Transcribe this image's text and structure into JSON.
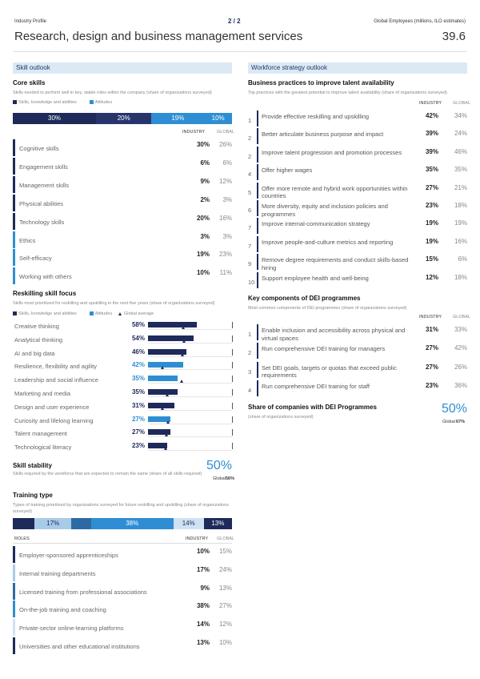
{
  "header": {
    "profile": "Industry Profile",
    "page": "2 / 2",
    "metric_label": "Global Employees (millions, ILO estimates)",
    "title": "Research, design and business management services",
    "metric_value": "39.6"
  },
  "skill_outlook": {
    "section": "Skill outlook",
    "core_skills": {
      "title": "Core skills",
      "subtitle": "Skills needed to perform well in key, stable roles within the company (share of organizations surveyed)",
      "legend": [
        "Skills, knowledge and abilities",
        "Attitudes"
      ],
      "legend_colors": [
        "#1e2a5a",
        "#2f8ed3"
      ],
      "bar": {
        "values": [
          30,
          20,
          19,
          10
        ],
        "value_labels": [
          "30%",
          "20%",
          "19%",
          "10%"
        ],
        "colors": [
          "#1e2a5a",
          "#27356b",
          "#2f8ed3",
          "#2f8ed3"
        ]
      },
      "columns": [
        "INDUSTRY",
        "GLOBAL"
      ],
      "rows": [
        [
          "Cognitive skills",
          "30%",
          "26%"
        ],
        [
          "Engagement skills",
          "6%",
          "6%"
        ],
        [
          "Management skills",
          "9%",
          "12%"
        ],
        [
          "Physical abilities",
          "2%",
          "3%"
        ],
        [
          "Technology skills",
          "20%",
          "16%"
        ],
        [
          "Ethics",
          "3%",
          "3%"
        ],
        [
          "Self-efficacy",
          "19%",
          "23%"
        ],
        [
          "Working with others",
          "10%",
          "11%"
        ]
      ],
      "row_colors": [
        "#1e2a5a",
        "#1e2a5a",
        "#1e2a5a",
        "#1e2a5a",
        "#1e2a5a",
        "#2f8ed3",
        "#2f8ed3",
        "#2f8ed3"
      ]
    },
    "reskilling": {
      "title": "Reskilling skill focus",
      "subtitle": "Skills most prioritized for reskilling and upskilling in the next five years (share of organizations surveyed)",
      "legend": [
        "Skills, knowledge and abilities",
        "Attitudes",
        "Global average"
      ],
      "legend_colors": [
        "#1e2a5a",
        "#2f8ed3",
        "#1e2a5a"
      ],
      "xlim": [
        0,
        100
      ],
      "items": [
        {
          "label": "Creative thinking",
          "value": 58,
          "value_label": "58%",
          "global": 42,
          "color": "#1e2a5a"
        },
        {
          "label": "Analytical thinking",
          "value": 54,
          "value_label": "54%",
          "global": 43,
          "color": "#1e2a5a"
        },
        {
          "label": "AI and big data",
          "value": 46,
          "value_label": "46%",
          "global": 41,
          "color": "#1e2a5a"
        },
        {
          "label": "Resilience, flexibility and agility",
          "value": 42,
          "value_label": "42%",
          "global": 18,
          "color": "#2f8ed3"
        },
        {
          "label": "Leadership and social influence",
          "value": 35,
          "value_label": "35%",
          "global": 40,
          "color": "#2f8ed3"
        },
        {
          "label": "Marketing and media",
          "value": 35,
          "value_label": "35%",
          "global": 23,
          "color": "#1e2a5a"
        },
        {
          "label": "Design and user experience",
          "value": 31,
          "value_label": "31%",
          "global": 18,
          "color": "#1e2a5a"
        },
        {
          "label": "Curiosity and lifelong learning",
          "value": 27,
          "value_label": "27%",
          "global": 24,
          "color": "#2f8ed3"
        },
        {
          "label": "Talent management",
          "value": 27,
          "value_label": "27%",
          "global": 22,
          "color": "#1e2a5a"
        },
        {
          "label": "Technological literacy",
          "value": 23,
          "value_label": "23%",
          "global": 21,
          "color": "#1e2a5a"
        }
      ]
    },
    "stability": {
      "title": "Skill stability",
      "value": "50%",
      "subtitle": "Skills required by the workforce that are expected to remain the same (share of all skills required)",
      "global_label": "Global",
      "global_value": "56%"
    },
    "training": {
      "title": "Training type",
      "subtitle": "Types of training prioritized by organizations surveyed for future reskilling and upskilling (share of organizations surveyed)",
      "bar": {
        "values": [
          10,
          17,
          9,
          38,
          14,
          13
        ],
        "value_labels": [
          null,
          "17%",
          null,
          "38%",
          "14%",
          "13%"
        ],
        "colors": [
          "#1e2a5a",
          "#a8cbe8",
          "#2d6aa3",
          "#2f8ed3",
          "#cfe2f3",
          "#1e2a5a"
        ]
      },
      "columns": [
        "ROLES",
        "INDUSTRY",
        "GLOBAL"
      ],
      "rows": [
        [
          "Employer-sponsored apprenticeships",
          "10%",
          "15%"
        ],
        [
          "Internal training departments",
          "17%",
          "24%"
        ],
        [
          "Licensed training from professional associations",
          "9%",
          "13%"
        ],
        [
          "On-the-job training and coaching",
          "38%",
          "27%"
        ],
        [
          "Private-sector online-learning platforms",
          "14%",
          "12%"
        ],
        [
          "Universities and other educational institutions",
          "13%",
          "10%"
        ]
      ],
      "row_colors": [
        "#1e2a5a",
        "#a8cbe8",
        "#2d6aa3",
        "#2f8ed3",
        "#cfe2f3",
        "#1e2a5a"
      ]
    }
  },
  "workforce": {
    "section": "Workforce strategy outlook",
    "practices": {
      "title": "Business practices to improve talent availability",
      "subtitle": "Top practices with the greatest potential to improve talent availability (share of organizations surveyed)",
      "columns": [
        "INDUSTRY",
        "GLOBAL"
      ],
      "rows": [
        [
          "1",
          "Provide effective reskilling and upskilling",
          "42%",
          "34%"
        ],
        [
          "2",
          "Better articulate business purpose and impact",
          "39%",
          "24%"
        ],
        [
          "2",
          "Improve talent progression and promotion processes",
          "39%",
          "46%"
        ],
        [
          "4",
          "Offer higher wages",
          "35%",
          "35%"
        ],
        [
          "5",
          "Offer more remote and hybrid work opportunities within countries",
          "27%",
          "21%"
        ],
        [
          "6",
          "More diversity, equity and inclusion policies and programmes",
          "23%",
          "18%"
        ],
        [
          "7",
          "Improve internal-communication strategy",
          "19%",
          "19%"
        ],
        [
          "7",
          "Improve people-and-culture metrics and reporting",
          "19%",
          "16%"
        ],
        [
          "9",
          "Remove degree requirements and conduct skills-based hiring",
          "15%",
          "6%"
        ],
        [
          "10",
          "Support employee health and well-being",
          "12%",
          "18%"
        ]
      ]
    },
    "dei": {
      "title": "Key components of DEI programmes",
      "subtitle": "Most common components of DEI programmes (share of organizations surveyed)",
      "columns": [
        "INDUSTRY",
        "GLOBAL"
      ],
      "rows": [
        [
          "1",
          "Enable inclusion and accessibility across physical and virtual spaces",
          "31%",
          "33%"
        ],
        [
          "2",
          "Run comprehensive DEI training for managers",
          "27%",
          "42%"
        ],
        [
          "3",
          "Set DEI goals, targets or quotas that exceed public requirements",
          "27%",
          "26%"
        ],
        [
          "4",
          "Run comprehensive DEI training for staff",
          "23%",
          "36%"
        ]
      ]
    },
    "dei_share": {
      "title": "Share of companies with DEI Programmes",
      "value": "50%",
      "subtitle": "(share of organizations surveyed)",
      "global_label": "Global",
      "global_value": "67%"
    }
  }
}
